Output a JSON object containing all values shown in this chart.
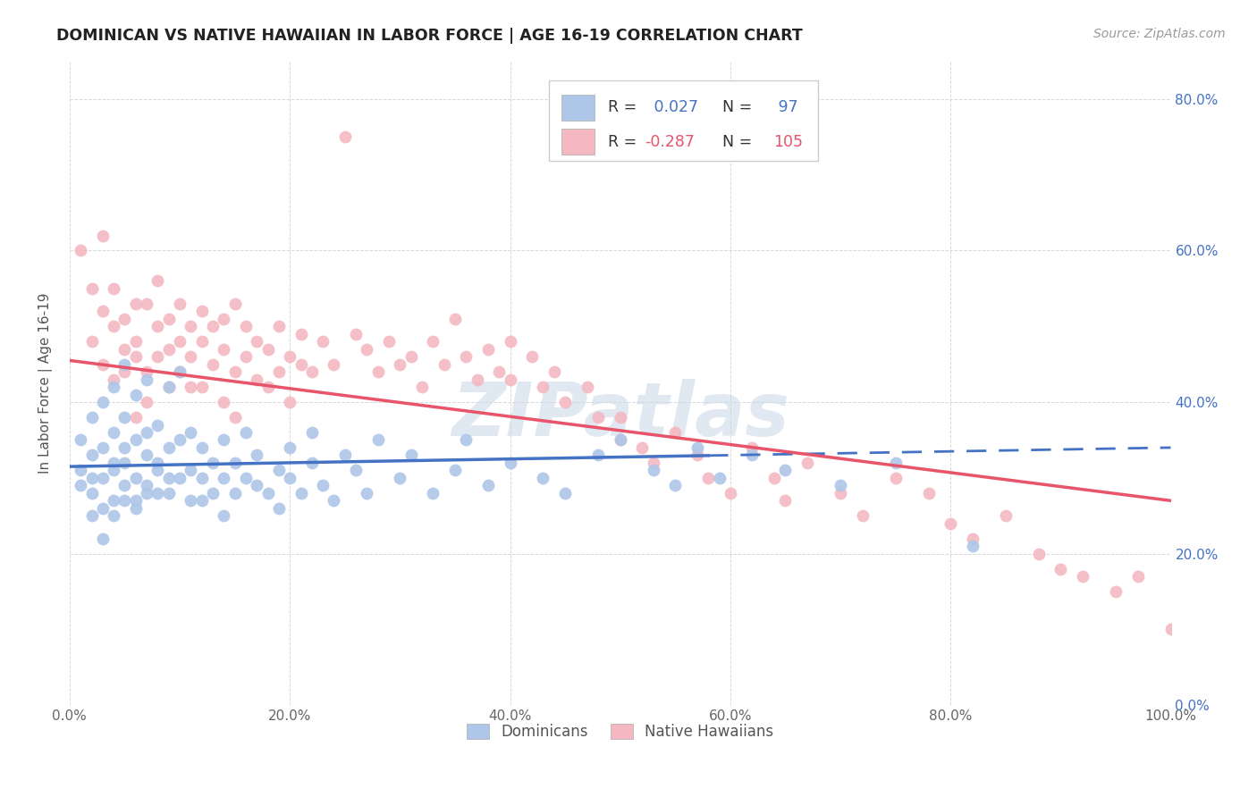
{
  "title": "DOMINICAN VS NATIVE HAWAIIAN IN LABOR FORCE | AGE 16-19 CORRELATION CHART",
  "source": "Source: ZipAtlas.com",
  "ylabel": "In Labor Force | Age 16-19",
  "xlim": [
    0.0,
    1.0
  ],
  "ylim": [
    0.0,
    0.85
  ],
  "xticks": [
    0.0,
    0.2,
    0.4,
    0.6,
    0.8,
    1.0
  ],
  "yticks": [
    0.0,
    0.2,
    0.4,
    0.6,
    0.8
  ],
  "xticklabels": [
    "0.0%",
    "20.0%",
    "40.0%",
    "60.0%",
    "80.0%",
    "100.0%"
  ],
  "yticklabels": [
    "0.0%",
    "20.0%",
    "40.0%",
    "60.0%",
    "80.0%"
  ],
  "dominicans_color": "#aec6e8",
  "native_hawaiians_color": "#f4b8c1",
  "trendline_dominicans_color": "#4472c4",
  "trendline_hawaiians_color": "#e8546a",
  "R_dominicans": 0.027,
  "N_dominicans": 97,
  "R_hawaiians": -0.287,
  "N_hawaiians": 105,
  "watermark": "ZIPatlas",
  "background_color": "#ffffff",
  "grid_color": "#d8d8d8",
  "dom_trend_start_y": 0.315,
  "dom_trend_end_y": 0.34,
  "dom_trend_solid_end_x": 0.58,
  "haw_trend_start_y": 0.455,
  "haw_trend_end_y": 0.27,
  "dominicans_x": [
    0.01,
    0.01,
    0.01,
    0.02,
    0.02,
    0.02,
    0.02,
    0.02,
    0.03,
    0.03,
    0.03,
    0.03,
    0.03,
    0.04,
    0.04,
    0.04,
    0.04,
    0.04,
    0.04,
    0.05,
    0.05,
    0.05,
    0.05,
    0.05,
    0.05,
    0.06,
    0.06,
    0.06,
    0.06,
    0.06,
    0.07,
    0.07,
    0.07,
    0.07,
    0.07,
    0.08,
    0.08,
    0.08,
    0.08,
    0.09,
    0.09,
    0.09,
    0.09,
    0.1,
    0.1,
    0.1,
    0.11,
    0.11,
    0.11,
    0.12,
    0.12,
    0.12,
    0.13,
    0.13,
    0.14,
    0.14,
    0.14,
    0.15,
    0.15,
    0.16,
    0.16,
    0.17,
    0.17,
    0.18,
    0.19,
    0.19,
    0.2,
    0.2,
    0.21,
    0.22,
    0.22,
    0.23,
    0.24,
    0.25,
    0.26,
    0.27,
    0.28,
    0.3,
    0.31,
    0.33,
    0.35,
    0.36,
    0.38,
    0.4,
    0.43,
    0.45,
    0.48,
    0.5,
    0.53,
    0.55,
    0.57,
    0.59,
    0.62,
    0.65,
    0.7,
    0.75,
    0.82
  ],
  "dominicans_y": [
    0.31,
    0.35,
    0.29,
    0.33,
    0.28,
    0.38,
    0.3,
    0.25,
    0.34,
    0.3,
    0.26,
    0.4,
    0.22,
    0.32,
    0.27,
    0.36,
    0.42,
    0.31,
    0.25,
    0.34,
    0.29,
    0.38,
    0.32,
    0.27,
    0.45,
    0.3,
    0.35,
    0.27,
    0.41,
    0.26,
    0.33,
    0.29,
    0.36,
    0.43,
    0.28,
    0.32,
    0.28,
    0.37,
    0.31,
    0.34,
    0.28,
    0.42,
    0.3,
    0.35,
    0.3,
    0.44,
    0.31,
    0.27,
    0.36,
    0.3,
    0.34,
    0.27,
    0.32,
    0.28,
    0.3,
    0.35,
    0.25,
    0.32,
    0.28,
    0.3,
    0.36,
    0.29,
    0.33,
    0.28,
    0.31,
    0.26,
    0.34,
    0.3,
    0.28,
    0.32,
    0.36,
    0.29,
    0.27,
    0.33,
    0.31,
    0.28,
    0.35,
    0.3,
    0.33,
    0.28,
    0.31,
    0.35,
    0.29,
    0.32,
    0.3,
    0.28,
    0.33,
    0.35,
    0.31,
    0.29,
    0.34,
    0.3,
    0.33,
    0.31,
    0.29,
    0.32,
    0.21
  ],
  "hawaiians_x": [
    0.01,
    0.02,
    0.02,
    0.03,
    0.03,
    0.03,
    0.04,
    0.04,
    0.04,
    0.05,
    0.05,
    0.05,
    0.06,
    0.06,
    0.06,
    0.06,
    0.07,
    0.07,
    0.07,
    0.08,
    0.08,
    0.08,
    0.09,
    0.09,
    0.09,
    0.1,
    0.1,
    0.1,
    0.11,
    0.11,
    0.11,
    0.12,
    0.12,
    0.12,
    0.13,
    0.13,
    0.14,
    0.14,
    0.14,
    0.15,
    0.15,
    0.15,
    0.16,
    0.16,
    0.17,
    0.17,
    0.18,
    0.18,
    0.19,
    0.19,
    0.2,
    0.2,
    0.21,
    0.21,
    0.22,
    0.23,
    0.24,
    0.25,
    0.26,
    0.27,
    0.28,
    0.29,
    0.3,
    0.31,
    0.32,
    0.33,
    0.34,
    0.35,
    0.36,
    0.37,
    0.38,
    0.39,
    0.4,
    0.4,
    0.42,
    0.43,
    0.44,
    0.45,
    0.47,
    0.48,
    0.5,
    0.5,
    0.52,
    0.53,
    0.55,
    0.57,
    0.58,
    0.6,
    0.62,
    0.64,
    0.65,
    0.67,
    0.7,
    0.72,
    0.75,
    0.78,
    0.8,
    0.82,
    0.85,
    0.88,
    0.9,
    0.92,
    0.95,
    0.97,
    1.0
  ],
  "hawaiians_y": [
    0.6,
    0.55,
    0.48,
    0.52,
    0.45,
    0.62,
    0.5,
    0.55,
    0.43,
    0.47,
    0.51,
    0.44,
    0.46,
    0.53,
    0.48,
    0.38,
    0.53,
    0.44,
    0.4,
    0.5,
    0.46,
    0.56,
    0.51,
    0.47,
    0.42,
    0.48,
    0.53,
    0.44,
    0.5,
    0.46,
    0.42,
    0.52,
    0.48,
    0.42,
    0.5,
    0.45,
    0.51,
    0.47,
    0.4,
    0.53,
    0.44,
    0.38,
    0.5,
    0.46,
    0.48,
    0.43,
    0.47,
    0.42,
    0.44,
    0.5,
    0.46,
    0.4,
    0.49,
    0.45,
    0.44,
    0.48,
    0.45,
    0.75,
    0.49,
    0.47,
    0.44,
    0.48,
    0.45,
    0.46,
    0.42,
    0.48,
    0.45,
    0.51,
    0.46,
    0.43,
    0.47,
    0.44,
    0.48,
    0.43,
    0.46,
    0.42,
    0.44,
    0.4,
    0.42,
    0.38,
    0.35,
    0.38,
    0.34,
    0.32,
    0.36,
    0.33,
    0.3,
    0.28,
    0.34,
    0.3,
    0.27,
    0.32,
    0.28,
    0.25,
    0.3,
    0.28,
    0.24,
    0.22,
    0.25,
    0.2,
    0.18,
    0.17,
    0.15,
    0.17,
    0.1
  ]
}
